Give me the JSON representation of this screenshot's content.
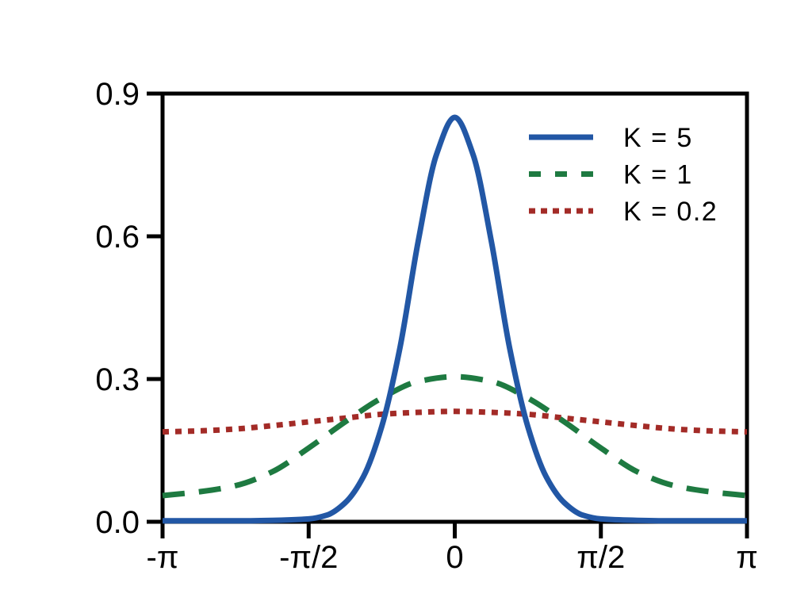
{
  "figure": {
    "background": "#ffffff",
    "axis_color": "#000000",
    "text_color": "#000000"
  },
  "chart_data": {
    "type": "line",
    "title": "",
    "xlabel": "",
    "ylabel": "",
    "grid": false,
    "legend_position": "upper-right-inside",
    "xlim_pi": [
      -1,
      1
    ],
    "ylim": [
      0,
      0.9
    ],
    "x_ticks_pi": [
      -1,
      -0.5,
      0,
      0.5,
      1
    ],
    "x_tick_labels": [
      "-π",
      "-π/2",
      "0",
      "π/2",
      "π"
    ],
    "y_ticks": [
      0.0,
      0.3,
      0.6,
      0.9
    ],
    "y_tick_labels": [
      "0.0",
      "0.3",
      "0.6",
      "0.9"
    ],
    "series": [
      {
        "name": "K = 5",
        "color": "#2257a5",
        "style": "solid",
        "x_pi": [
          -1,
          -0.875,
          -0.75,
          -0.625,
          -0.5,
          -0.4375,
          -0.375,
          -0.3125,
          -0.25,
          -0.1875,
          -0.125,
          -0.0625,
          0,
          0.0625,
          0.125,
          0.1875,
          0.25,
          0.3125,
          0.375,
          0.4375,
          0.5,
          0.625,
          0.75,
          0.875,
          1
        ],
        "y": [
          0.002,
          0.002,
          0.002,
          0.003,
          0.006,
          0.014,
          0.04,
          0.095,
          0.2,
          0.366,
          0.59,
          0.772,
          0.85,
          0.772,
          0.59,
          0.366,
          0.2,
          0.095,
          0.04,
          0.014,
          0.006,
          0.003,
          0.002,
          0.002,
          0.002
        ]
      },
      {
        "name": "K = 1",
        "color": "#1e7a41",
        "style": "dashed",
        "x_pi": [
          -1,
          -0.875,
          -0.75,
          -0.625,
          -0.5,
          -0.375,
          -0.25,
          -0.125,
          0,
          0.125,
          0.25,
          0.375,
          0.5,
          0.625,
          0.75,
          0.875,
          1
        ],
        "y": [
          0.055,
          0.063,
          0.076,
          0.105,
          0.155,
          0.21,
          0.26,
          0.295,
          0.305,
          0.295,
          0.26,
          0.21,
          0.155,
          0.105,
          0.076,
          0.063,
          0.055
        ]
      },
      {
        "name": "K = 0.2",
        "color": "#a32b27",
        "style": "dotted",
        "x_pi": [
          -1,
          -0.875,
          -0.75,
          -0.625,
          -0.5,
          -0.375,
          -0.25,
          -0.125,
          0,
          0.125,
          0.25,
          0.375,
          0.5,
          0.625,
          0.75,
          0.875,
          1
        ],
        "y": [
          0.189,
          0.191,
          0.195,
          0.202,
          0.21,
          0.218,
          0.226,
          0.23,
          0.232,
          0.23,
          0.226,
          0.218,
          0.21,
          0.202,
          0.195,
          0.191,
          0.189
        ]
      }
    ]
  }
}
